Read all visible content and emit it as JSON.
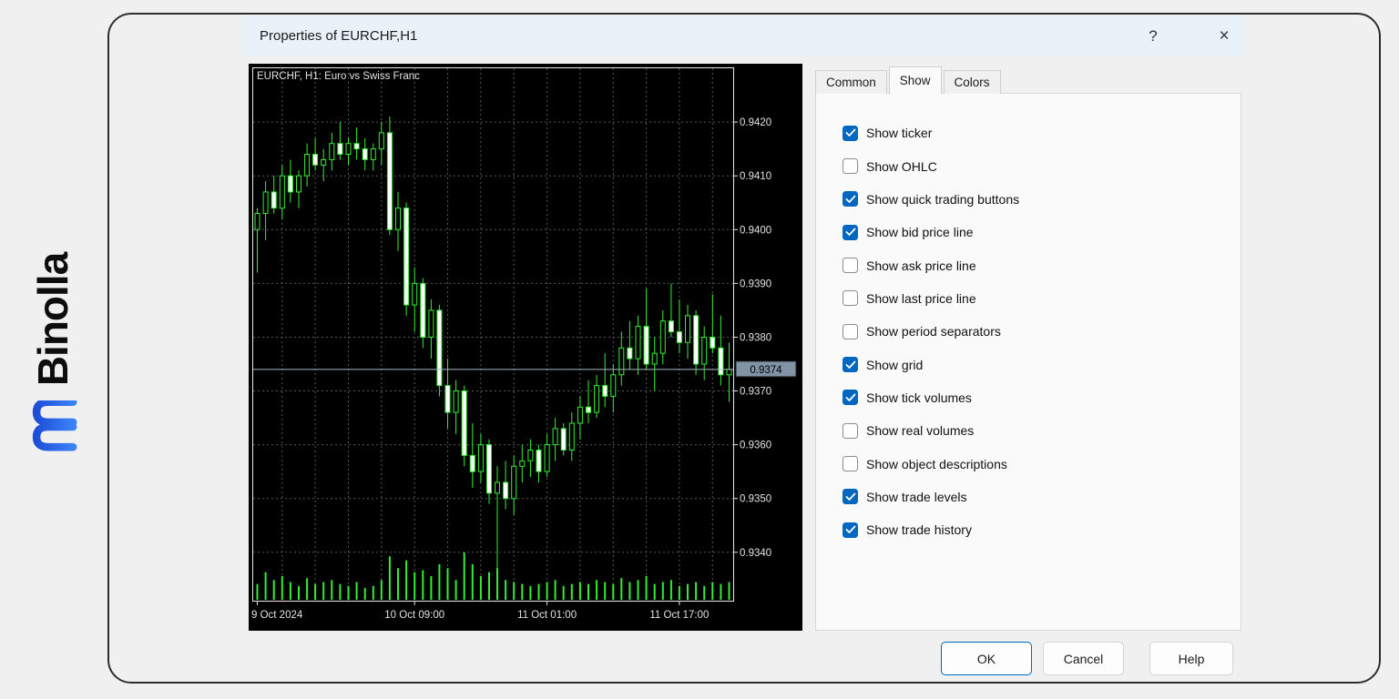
{
  "branding": {
    "name": "Binolla",
    "logo_color_top": "#1d4ed8",
    "logo_color_bottom": "#3b82f6"
  },
  "window": {
    "title": "Properties of EURCHF,H1",
    "help_glyph": "?",
    "close_glyph": "×"
  },
  "tabs": [
    {
      "label": "Common",
      "active": false
    },
    {
      "label": "Show",
      "active": true
    },
    {
      "label": "Colors",
      "active": false
    }
  ],
  "options": [
    {
      "label": "Show ticker",
      "checked": true
    },
    {
      "label": "Show OHLC",
      "checked": false
    },
    {
      "label": "Show quick trading buttons",
      "checked": true
    },
    {
      "label": "Show bid price line",
      "checked": true
    },
    {
      "label": "Show ask price line",
      "checked": false
    },
    {
      "label": "Show last price line",
      "checked": false
    },
    {
      "label": "Show period separators",
      "checked": false
    },
    {
      "label": "Show grid",
      "checked": true
    },
    {
      "label": "Show tick volumes",
      "checked": true
    },
    {
      "label": "Show real volumes",
      "checked": false
    },
    {
      "label": "Show object descriptions",
      "checked": false
    },
    {
      "label": "Show trade levels",
      "checked": true
    },
    {
      "label": "Show trade history",
      "checked": true
    }
  ],
  "buttons": {
    "ok": "OK",
    "cancel": "Cancel",
    "help": "Help"
  },
  "chart": {
    "type": "candlestick",
    "title": "EURCHF, H1: Euro vs Swiss Franc",
    "bid": {
      "price": 0.9374,
      "label": "0.9374"
    },
    "price_range": {
      "max": 0.943,
      "min": 0.9331
    },
    "grid": true,
    "y_ticks": [
      "0.9420",
      "0.9410",
      "0.9400",
      "0.9390",
      "0.9380",
      "0.9370",
      "0.9360",
      "0.9350",
      "0.9340"
    ],
    "x_ticks": [
      {
        "label": "9 Oct 2024",
        "bar": 0,
        "anchor": "start"
      },
      {
        "label": "10 Oct 09:00",
        "bar": 19,
        "anchor": "middle"
      },
      {
        "label": "11 Oct 01:00",
        "bar": 35,
        "anchor": "middle"
      },
      {
        "label": "11 Oct 17:00",
        "bar": 51,
        "anchor": "middle"
      }
    ],
    "colors": {
      "bg": "#000000",
      "grid": "#4f585e",
      "candle": "#30f030",
      "bear_fill": "#ffffff",
      "bull_fill": "#000000",
      "axis_text": "#e2e2e2",
      "border": "#e8e8e8",
      "bid_line": "#a8b8c4",
      "bid_label_bg": "#8094a5",
      "bid_label_text": "#000000"
    },
    "candles": [
      [
        0.94,
        0.9404,
        0.9392,
        0.9403,
        8
      ],
      [
        0.9403,
        0.9409,
        0.9398,
        0.9407,
        14
      ],
      [
        0.9407,
        0.941,
        0.9403,
        0.9404,
        10
      ],
      [
        0.9404,
        0.9412,
        0.9402,
        0.941,
        12
      ],
      [
        0.941,
        0.9413,
        0.9405,
        0.9407,
        9
      ],
      [
        0.9407,
        0.9411,
        0.9404,
        0.941,
        7
      ],
      [
        0.941,
        0.9416,
        0.9408,
        0.9414,
        11
      ],
      [
        0.9414,
        0.9417,
        0.9411,
        0.9412,
        8
      ],
      [
        0.9412,
        0.9415,
        0.9409,
        0.9413,
        9
      ],
      [
        0.9413,
        0.9418,
        0.9411,
        0.9416,
        10
      ],
      [
        0.9416,
        0.942,
        0.9413,
        0.9414,
        8
      ],
      [
        0.9414,
        0.9417,
        0.9412,
        0.9416,
        7
      ],
      [
        0.9416,
        0.9419,
        0.9413,
        0.9415,
        9
      ],
      [
        0.9415,
        0.9417,
        0.9411,
        0.9413,
        6
      ],
      [
        0.9413,
        0.9416,
        0.9411,
        0.9415,
        7
      ],
      [
        0.9415,
        0.942,
        0.9412,
        0.9418,
        10
      ],
      [
        0.9418,
        0.9421,
        0.9399,
        0.94,
        22
      ],
      [
        0.94,
        0.9407,
        0.9396,
        0.9404,
        16
      ],
      [
        0.9404,
        0.9405,
        0.9384,
        0.9386,
        20
      ],
      [
        0.9386,
        0.9393,
        0.9381,
        0.939,
        14
      ],
      [
        0.939,
        0.9391,
        0.9378,
        0.938,
        15
      ],
      [
        0.938,
        0.9387,
        0.9376,
        0.9385,
        12
      ],
      [
        0.9385,
        0.9386,
        0.9369,
        0.9371,
        18
      ],
      [
        0.9371,
        0.9376,
        0.9363,
        0.9366,
        16
      ],
      [
        0.9366,
        0.9372,
        0.9362,
        0.937,
        10
      ],
      [
        0.937,
        0.9371,
        0.9356,
        0.9358,
        24
      ],
      [
        0.9358,
        0.9364,
        0.9352,
        0.9355,
        18
      ],
      [
        0.9355,
        0.9362,
        0.9353,
        0.936,
        12
      ],
      [
        0.936,
        0.9361,
        0.9349,
        0.9351,
        14
      ],
      [
        0.9351,
        0.9356,
        0.9335,
        0.9353,
        16
      ],
      [
        0.9353,
        0.9357,
        0.9348,
        0.935,
        10
      ],
      [
        0.935,
        0.9358,
        0.9347,
        0.9356,
        9
      ],
      [
        0.9356,
        0.936,
        0.9353,
        0.9357,
        8
      ],
      [
        0.9357,
        0.9361,
        0.9354,
        0.9359,
        7
      ],
      [
        0.9359,
        0.936,
        0.9353,
        0.9355,
        8
      ],
      [
        0.9355,
        0.9362,
        0.9354,
        0.936,
        9
      ],
      [
        0.936,
        0.9365,
        0.9357,
        0.9363,
        10
      ],
      [
        0.9363,
        0.9364,
        0.9358,
        0.9359,
        7
      ],
      [
        0.9359,
        0.9366,
        0.9357,
        0.9364,
        8
      ],
      [
        0.9364,
        0.9369,
        0.9361,
        0.9367,
        9
      ],
      [
        0.9367,
        0.9372,
        0.9364,
        0.9366,
        8
      ],
      [
        0.9366,
        0.9373,
        0.9365,
        0.9371,
        10
      ],
      [
        0.9371,
        0.9377,
        0.9367,
        0.9369,
        9
      ],
      [
        0.9369,
        0.9375,
        0.9366,
        0.9373,
        8
      ],
      [
        0.9373,
        0.9381,
        0.9371,
        0.9378,
        11
      ],
      [
        0.9378,
        0.9383,
        0.9374,
        0.9376,
        9
      ],
      [
        0.9376,
        0.9384,
        0.9373,
        0.9382,
        10
      ],
      [
        0.9382,
        0.9389,
        0.9374,
        0.9375,
        12
      ],
      [
        0.9375,
        0.938,
        0.937,
        0.9377,
        8
      ],
      [
        0.9377,
        0.9385,
        0.9375,
        0.9383,
        9
      ],
      [
        0.9383,
        0.939,
        0.938,
        0.9381,
        10
      ],
      [
        0.9381,
        0.9387,
        0.9377,
        0.9379,
        7
      ],
      [
        0.9379,
        0.9386,
        0.9376,
        0.9384,
        8
      ],
      [
        0.9384,
        0.9385,
        0.9373,
        0.9375,
        9
      ],
      [
        0.9375,
        0.9382,
        0.9372,
        0.938,
        7
      ],
      [
        0.938,
        0.9388,
        0.9377,
        0.9378,
        9
      ],
      [
        0.9378,
        0.9384,
        0.9371,
        0.9373,
        8
      ],
      [
        0.9373,
        0.9379,
        0.9368,
        0.9374,
        9
      ]
    ]
  }
}
